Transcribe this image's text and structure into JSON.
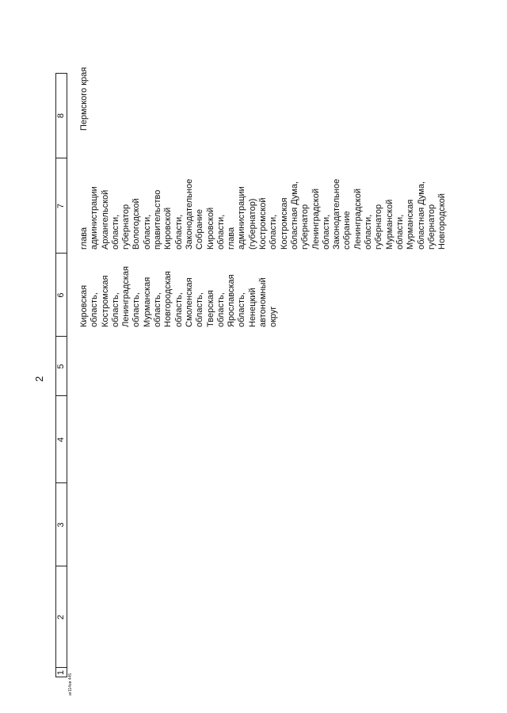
{
  "page_number": "2",
  "table": {
    "header": [
      "1",
      "2",
      "3",
      "4",
      "5",
      "6",
      "7",
      "8"
    ],
    "rows": [
      {
        "6": [
          "Кировская",
          "область,",
          "Костромская",
          "область,",
          "Ленинградская",
          "область,",
          "Мурманская",
          "область,",
          "Новгородская",
          "область,",
          "Смоленская",
          "область,",
          "Тверская",
          "область,",
          "Ярославская",
          "область,",
          "Ненецкий",
          "автономный",
          "округ"
        ],
        "7": [
          "глава",
          "администрации",
          "Архангельской",
          "области,",
          "губернатор",
          "Вологодской",
          "области,",
          "правительство",
          "Кировской",
          "области,",
          "Законодательное",
          "Собрание",
          "Кировской",
          "области,",
          "глава",
          "администрации",
          "(губернатор)",
          "Костромской",
          "области,",
          "Костромская",
          "областная Дума,",
          "губернатор",
          "Ленинградской",
          "области,",
          "Законодательное",
          "собрание",
          "Ленинградской",
          "области,",
          "губернатор",
          "Мурманской",
          "области,",
          "Мурманская",
          "областная Дума,",
          "губернатор",
          "Новгородской"
        ],
        "8": [
          "Пермского края"
        ]
      }
    ]
  },
  "footer": "ат114ов 445"
}
